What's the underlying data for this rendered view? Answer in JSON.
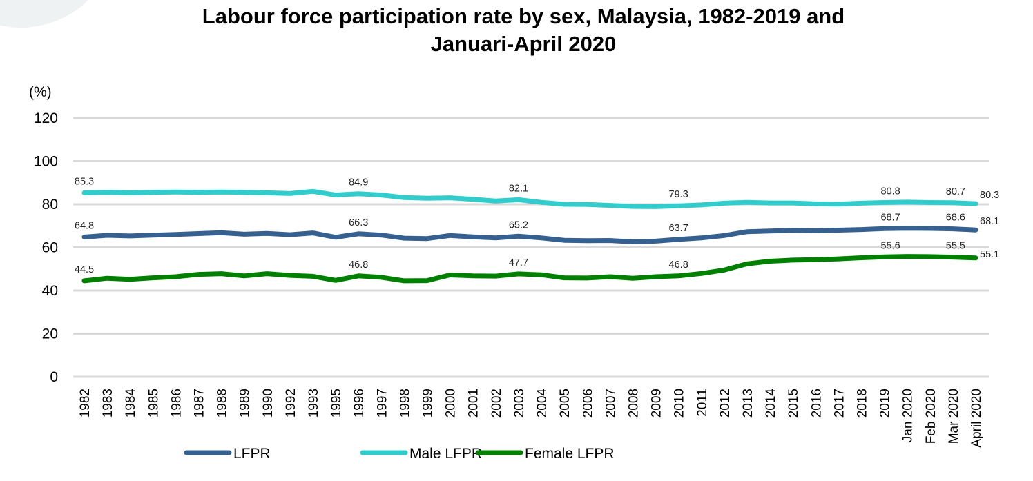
{
  "chart_data": {
    "type": "line",
    "title": "Labour force participation rate by sex, Malaysia, 1982-2019 and Januari-April 2020",
    "title_lines": [
      "Labour force participation rate by sex, Malaysia, 1982-2019 and",
      "Januari-April 2020"
    ],
    "ylabel": "(%)",
    "xlabel": "",
    "ylim": [
      0,
      120
    ],
    "yticks": [
      0,
      20,
      40,
      60,
      80,
      100,
      120
    ],
    "grid": true,
    "legend_position": "bottom",
    "categories": [
      "1982",
      "1983",
      "1984",
      "1985",
      "1986",
      "1987",
      "1988",
      "1989",
      "1990",
      "1992",
      "1993",
      "1995",
      "1996",
      "1997",
      "1998",
      "1999",
      "2000",
      "2001",
      "2002",
      "2003",
      "2004",
      "2005",
      "2006",
      "2007",
      "2008",
      "2009",
      "2010",
      "2011",
      "2012",
      "2013",
      "2014",
      "2015",
      "2016",
      "2017",
      "2018",
      "2019",
      "Jan 2020",
      "Feb 2020",
      "Mar 2020",
      "April 2020"
    ],
    "series": [
      {
        "name": "LFPR",
        "color": "#36608f",
        "values": [
          64.8,
          65.6,
          65.3,
          65.7,
          66.0,
          66.4,
          66.8,
          66.1,
          66.5,
          65.9,
          66.7,
          64.7,
          66.3,
          65.7,
          64.3,
          64.1,
          65.5,
          64.9,
          64.4,
          65.2,
          64.4,
          63.3,
          63.1,
          63.2,
          62.6,
          62.9,
          63.7,
          64.4,
          65.5,
          67.3,
          67.6,
          67.9,
          67.7,
          68.0,
          68.3,
          68.7,
          68.9,
          68.8,
          68.6,
          68.1
        ],
        "labels": {
          "0": "64.8",
          "12": "66.3",
          "19": "65.2",
          "26": "63.7",
          "35": "68.7",
          "38": "68.6",
          "39": "68.1"
        }
      },
      {
        "name": "Male LFPR",
        "color": "#33cccc",
        "values": [
          85.3,
          85.5,
          85.3,
          85.5,
          85.7,
          85.5,
          85.7,
          85.5,
          85.3,
          85.0,
          86.0,
          84.3,
          84.9,
          84.3,
          83.1,
          82.8,
          83.0,
          82.3,
          81.5,
          82.1,
          80.9,
          80.0,
          79.9,
          79.5,
          79.0,
          78.9,
          79.3,
          79.7,
          80.5,
          80.9,
          80.6,
          80.6,
          80.2,
          80.1,
          80.5,
          80.8,
          81.0,
          80.8,
          80.7,
          80.3
        ],
        "labels": {
          "0": "85.3",
          "12": "84.9",
          "19": "82.1",
          "26": "79.3",
          "35": "80.8",
          "38": "80.7",
          "39": "80.3"
        }
      },
      {
        "name": "Female LFPR",
        "color": "#008000",
        "values": [
          44.5,
          45.7,
          45.2,
          45.9,
          46.4,
          47.5,
          47.8,
          46.8,
          47.8,
          47.0,
          46.6,
          44.7,
          46.8,
          46.1,
          44.5,
          44.6,
          47.2,
          46.8,
          46.7,
          47.7,
          47.3,
          45.9,
          45.8,
          46.4,
          45.7,
          46.4,
          46.8,
          47.9,
          49.5,
          52.4,
          53.6,
          54.1,
          54.3,
          54.7,
          55.2,
          55.6,
          55.8,
          55.7,
          55.5,
          55.1
        ],
        "labels": {
          "0": "44.5",
          "12": "46.8",
          "19": "47.7",
          "26": "46.8",
          "35": "55.6",
          "38": "55.5",
          "39": "55.1"
        }
      }
    ]
  }
}
